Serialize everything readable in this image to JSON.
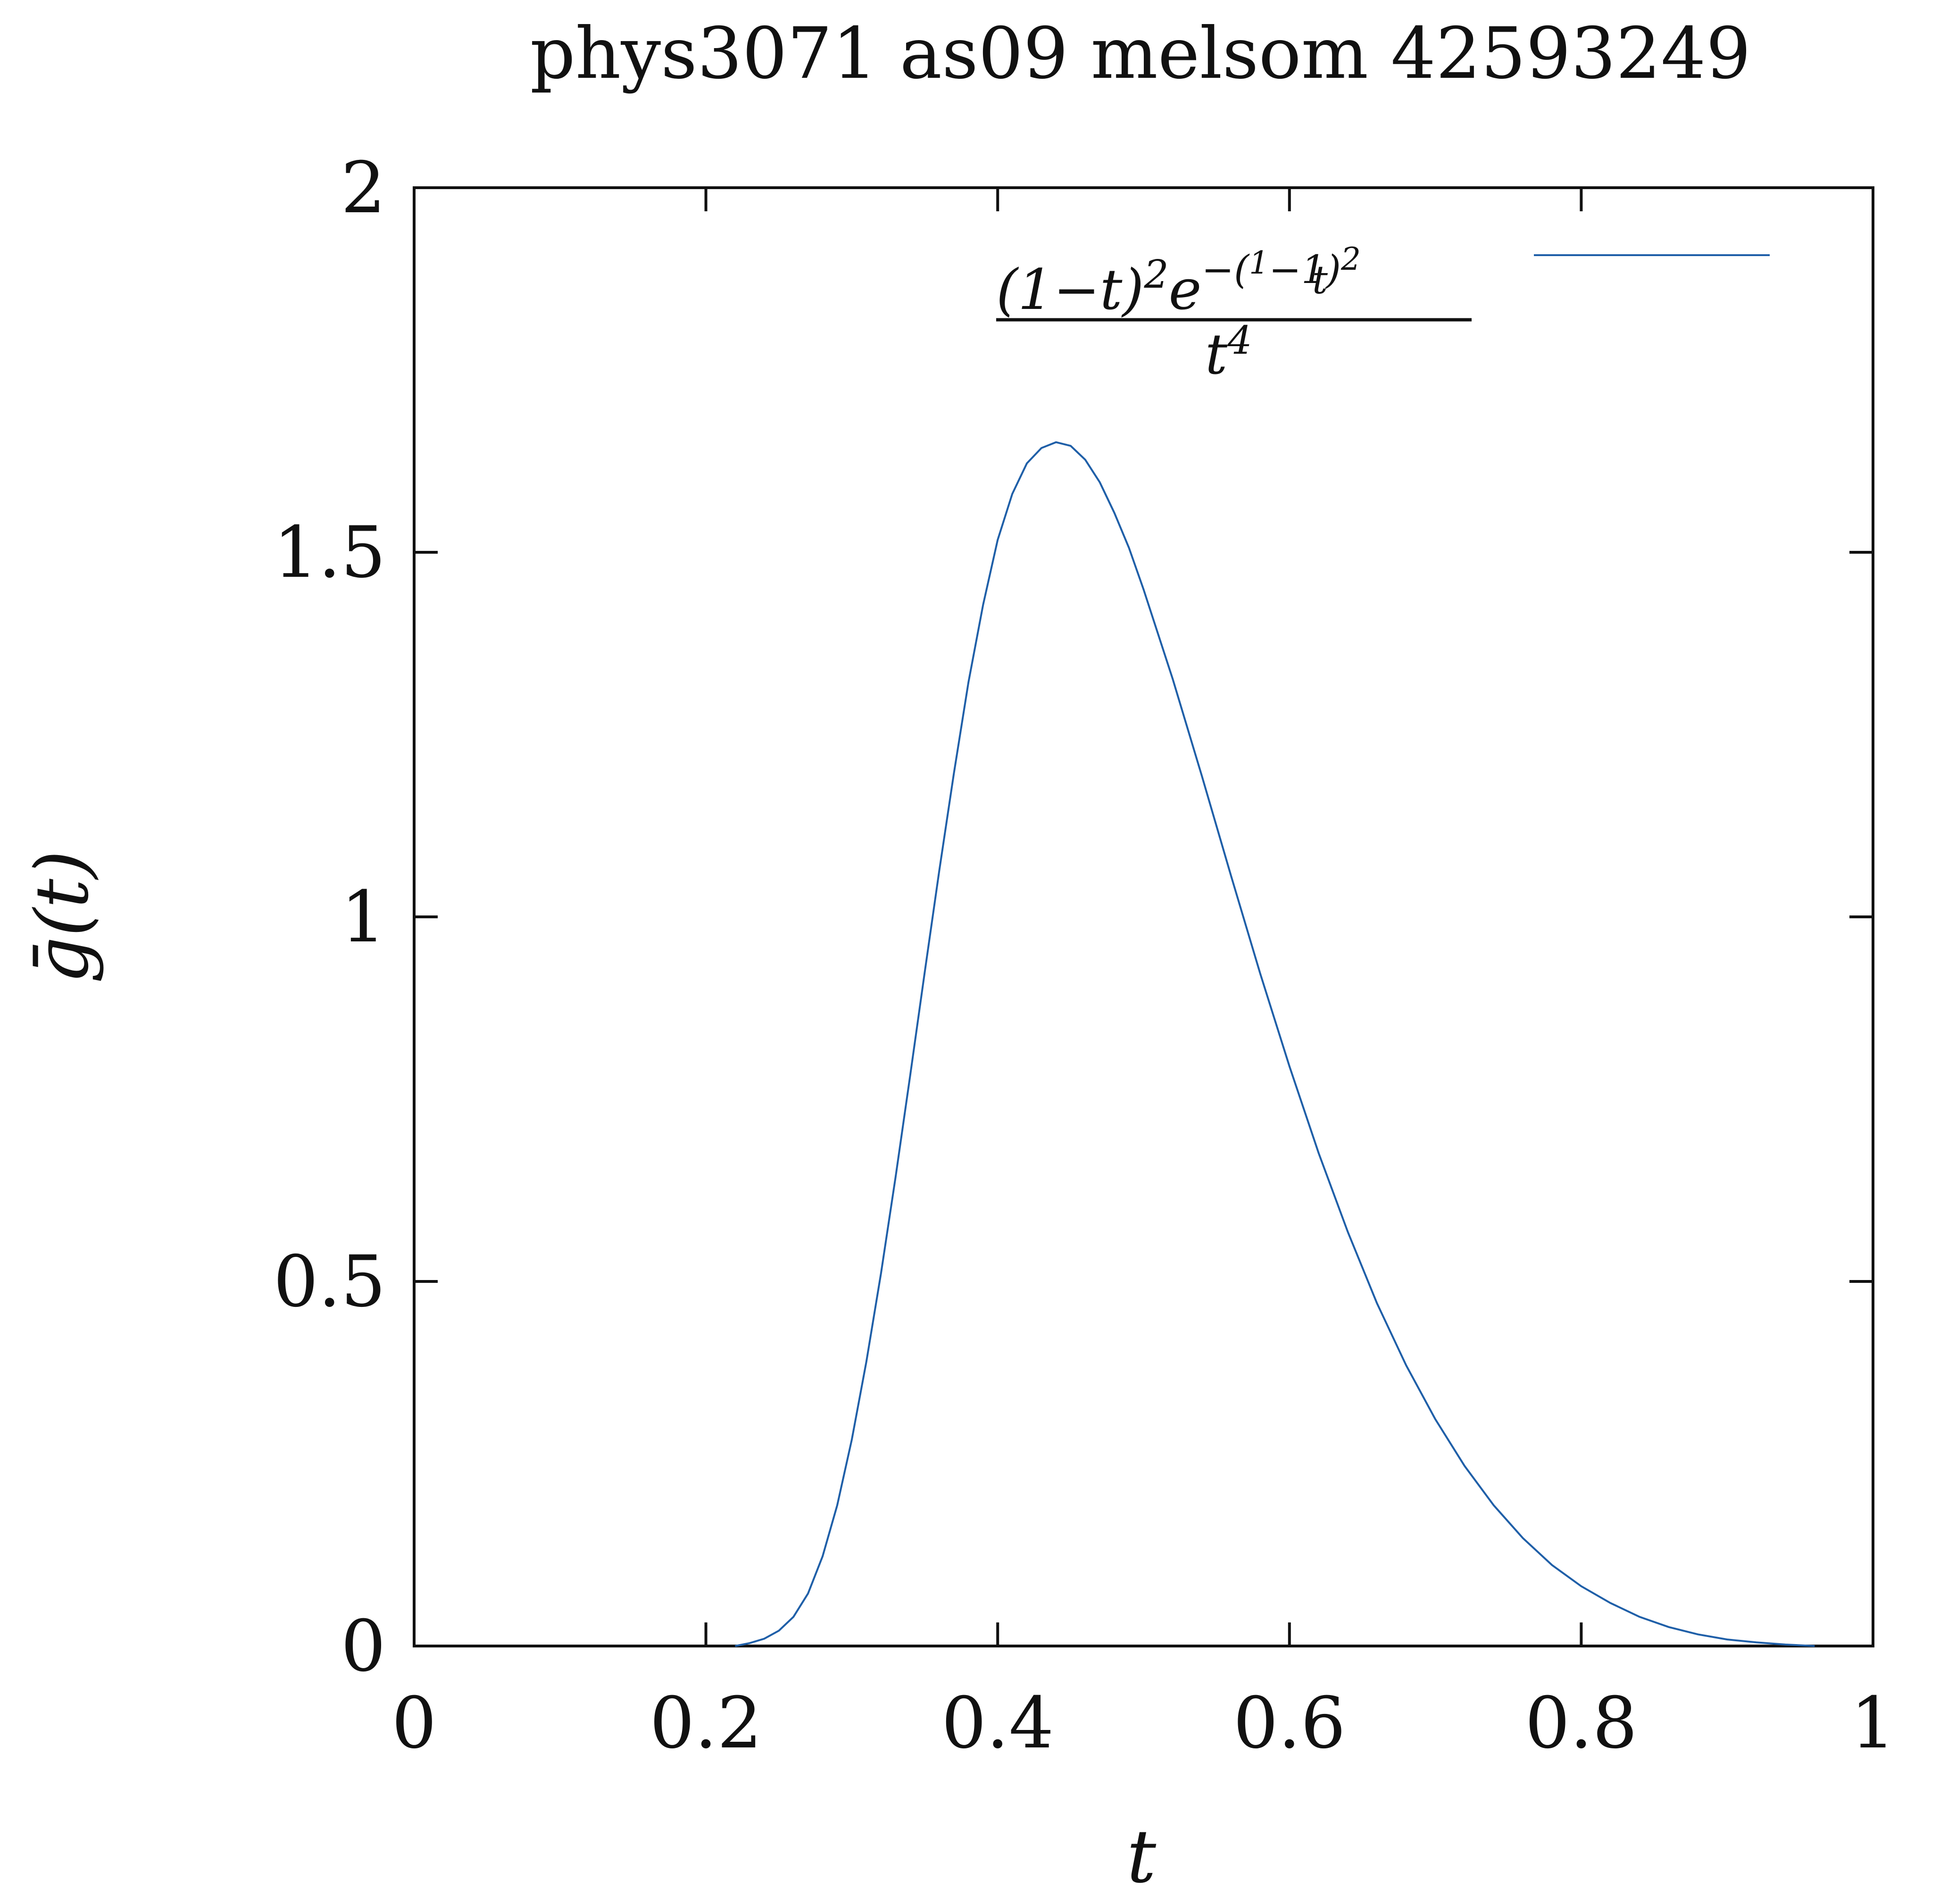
{
  "chart_data": {
    "type": "line",
    "title": "phys3071 as09 melsom 42593249",
    "xlabel": "t",
    "ylabel": "ḡ(t)",
    "xlim": [
      0,
      1
    ],
    "ylim": [
      0,
      2
    ],
    "x_ticks": [
      "0",
      "0.2",
      "0.4",
      "0.6",
      "0.8",
      "1"
    ],
    "y_ticks": [
      "0",
      "0.5",
      "1",
      "1.5",
      "2"
    ],
    "grid": false,
    "legend_position": "top-right",
    "series": [
      {
        "name": "(1−t)²e^{−(1/t−1)²}/t⁴",
        "color": "#1f5fa8",
        "points": [
          [
            0.22,
            0.0
          ],
          [
            0.23,
            0.004
          ],
          [
            0.24,
            0.01
          ],
          [
            0.25,
            0.021
          ],
          [
            0.26,
            0.04
          ],
          [
            0.27,
            0.072
          ],
          [
            0.28,
            0.123
          ],
          [
            0.29,
            0.193
          ],
          [
            0.3,
            0.283
          ],
          [
            0.31,
            0.39
          ],
          [
            0.32,
            0.511
          ],
          [
            0.33,
            0.643
          ],
          [
            0.34,
            0.782
          ],
          [
            0.35,
            0.924
          ],
          [
            0.36,
            1.064
          ],
          [
            0.37,
            1.197
          ],
          [
            0.38,
            1.322
          ],
          [
            0.39,
            1.428
          ],
          [
            0.4,
            1.517
          ],
          [
            0.41,
            1.58
          ],
          [
            0.42,
            1.622
          ],
          [
            0.43,
            1.643
          ],
          [
            0.44,
            1.651
          ],
          [
            0.45,
            1.646
          ],
          [
            0.46,
            1.627
          ],
          [
            0.47,
            1.596
          ],
          [
            0.48,
            1.554
          ],
          [
            0.49,
            1.506
          ],
          [
            0.5,
            1.449
          ],
          [
            0.52,
            1.326
          ],
          [
            0.54,
            1.193
          ],
          [
            0.56,
            1.056
          ],
          [
            0.58,
            0.922
          ],
          [
            0.6,
            0.795
          ],
          [
            0.62,
            0.676
          ],
          [
            0.64,
            0.568
          ],
          [
            0.66,
            0.47
          ],
          [
            0.68,
            0.385
          ],
          [
            0.7,
            0.311
          ],
          [
            0.72,
            0.247
          ],
          [
            0.74,
            0.193
          ],
          [
            0.76,
            0.148
          ],
          [
            0.78,
            0.111
          ],
          [
            0.8,
            0.082
          ],
          [
            0.82,
            0.059
          ],
          [
            0.84,
            0.04
          ],
          [
            0.86,
            0.026
          ],
          [
            0.88,
            0.016
          ],
          [
            0.9,
            0.009
          ],
          [
            0.92,
            0.005
          ],
          [
            0.94,
            0.002
          ],
          [
            0.96,
            0.0
          ]
        ]
      }
    ]
  }
}
